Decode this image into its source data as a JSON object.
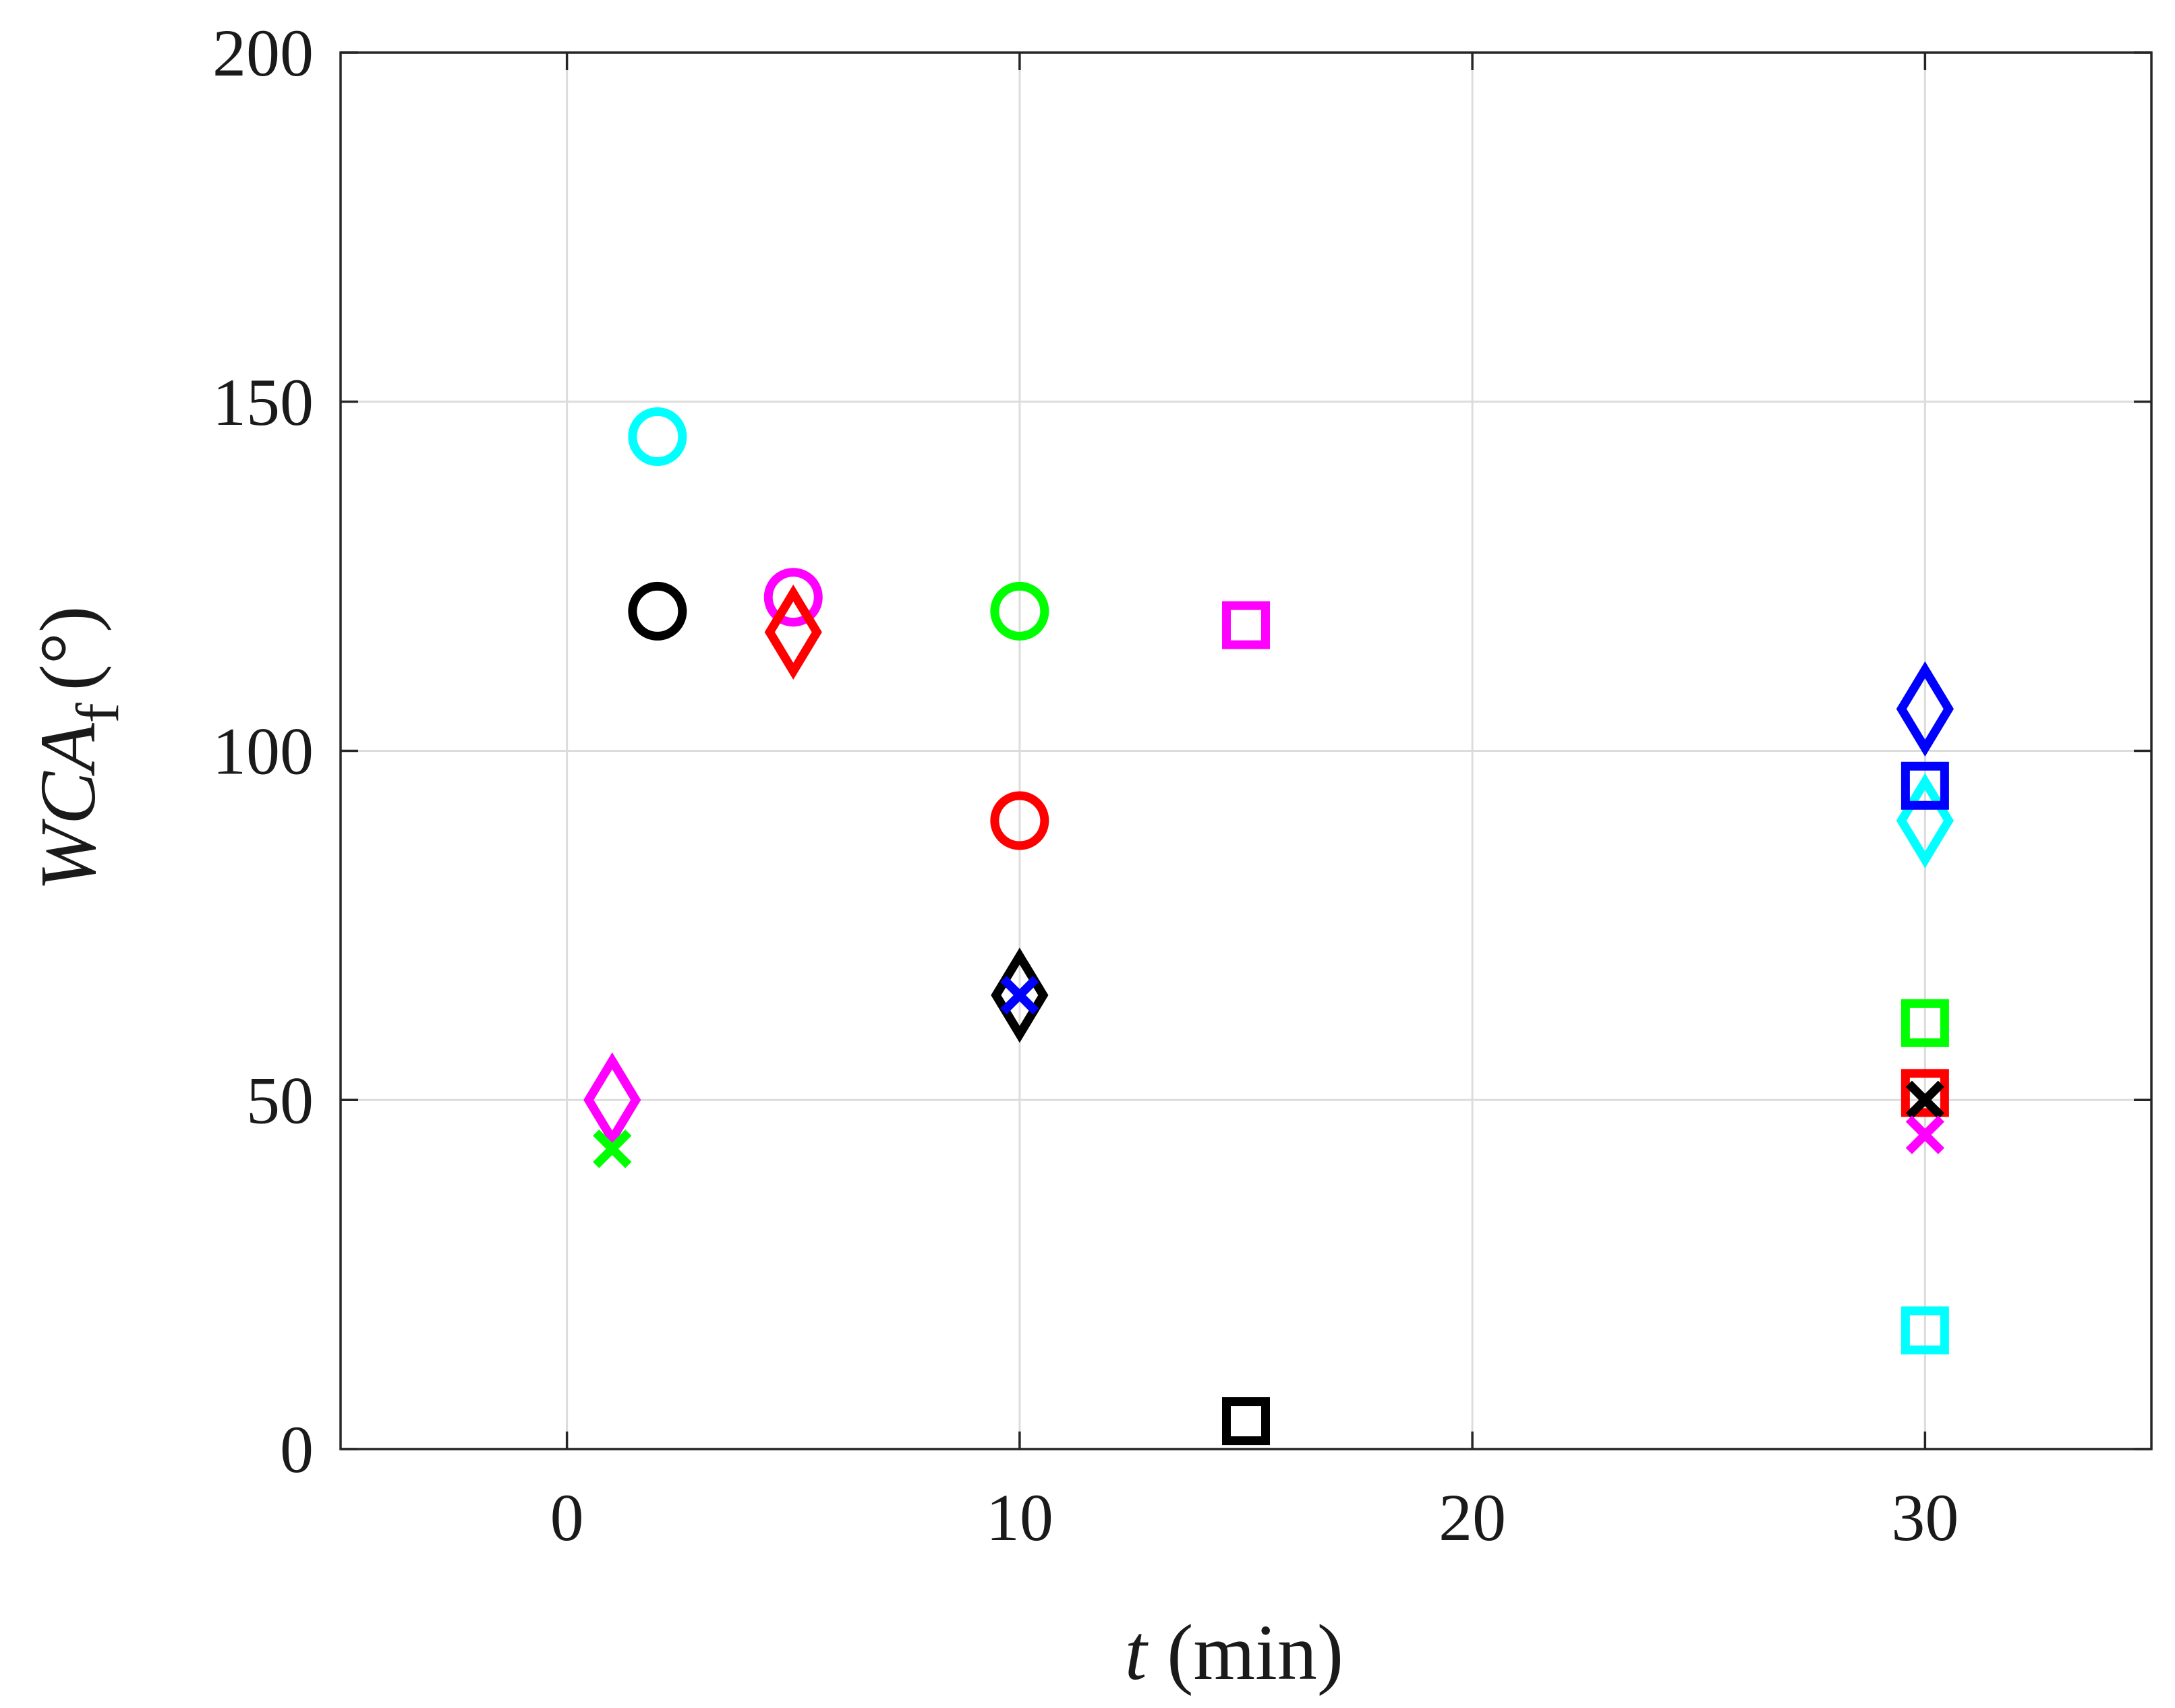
{
  "chart_data": {
    "type": "scatter",
    "title": "",
    "xlabel": {
      "var": "t",
      "unit": "(min)"
    },
    "ylabel": {
      "var": "WCA",
      "sub": "f",
      "unit": "(°)"
    },
    "xlim": [
      -5,
      35
    ],
    "ylim": [
      0,
      200
    ],
    "xticks": [
      0,
      10,
      20,
      30
    ],
    "yticks": [
      0,
      50,
      100,
      150,
      200
    ],
    "xtick_labels": [
      "0",
      "10",
      "20",
      "30"
    ],
    "ytick_labels": [
      "0",
      "50",
      "100",
      "150",
      "200"
    ],
    "grid": true,
    "legend": "none",
    "series": [
      {
        "name": "cyan-circle",
        "marker": "circle",
        "color": "#00ffff",
        "points": [
          [
            2,
            145
          ]
        ]
      },
      {
        "name": "black-circle",
        "marker": "circle",
        "color": "#000000",
        "points": [
          [
            2,
            120
          ]
        ]
      },
      {
        "name": "magenta-circle",
        "marker": "circle",
        "color": "#ff00ff",
        "points": [
          [
            5,
            122
          ]
        ]
      },
      {
        "name": "green-circle",
        "marker": "circle",
        "color": "#00ff00",
        "points": [
          [
            10,
            120
          ]
        ]
      },
      {
        "name": "red-circle",
        "marker": "circle",
        "color": "#ff0000",
        "points": [
          [
            10,
            90
          ]
        ]
      },
      {
        "name": "red-diamond",
        "marker": "diamond",
        "color": "#ff0000",
        "points": [
          [
            5,
            117
          ]
        ]
      },
      {
        "name": "magenta-diamond",
        "marker": "diamond",
        "color": "#ff00ff",
        "points": [
          [
            1,
            50
          ]
        ]
      },
      {
        "name": "black-diamond",
        "marker": "diamond",
        "color": "#000000",
        "points": [
          [
            10,
            65
          ]
        ]
      },
      {
        "name": "blue-diamond",
        "marker": "diamond",
        "color": "#0000ff",
        "points": [
          [
            30,
            106
          ]
        ]
      },
      {
        "name": "cyan-diamond",
        "marker": "diamond",
        "color": "#00ffff",
        "points": [
          [
            30,
            90
          ]
        ]
      },
      {
        "name": "magenta-square",
        "marker": "square",
        "color": "#ff00ff",
        "points": [
          [
            15,
            118
          ]
        ]
      },
      {
        "name": "black-square",
        "marker": "square",
        "color": "#000000",
        "points": [
          [
            15,
            4
          ]
        ]
      },
      {
        "name": "blue-square",
        "marker": "square",
        "color": "#0000ff",
        "points": [
          [
            30,
            95
          ]
        ]
      },
      {
        "name": "green-square",
        "marker": "square",
        "color": "#00ff00",
        "points": [
          [
            30,
            61
          ]
        ]
      },
      {
        "name": "red-square",
        "marker": "square",
        "color": "#ff0000",
        "points": [
          [
            30,
            51
          ]
        ]
      },
      {
        "name": "cyan-square",
        "marker": "square",
        "color": "#00ffff",
        "points": [
          [
            30,
            17
          ]
        ]
      },
      {
        "name": "green-x",
        "marker": "x",
        "color": "#00ff00",
        "points": [
          [
            1,
            43
          ]
        ]
      },
      {
        "name": "blue-x",
        "marker": "x",
        "color": "#0000ff",
        "points": [
          [
            10,
            65
          ]
        ]
      },
      {
        "name": "black-x",
        "marker": "x",
        "color": "#000000",
        "points": [
          [
            30,
            50
          ]
        ]
      },
      {
        "name": "magenta-x",
        "marker": "x",
        "color": "#ff00ff",
        "points": [
          [
            30,
            45
          ]
        ]
      }
    ]
  }
}
